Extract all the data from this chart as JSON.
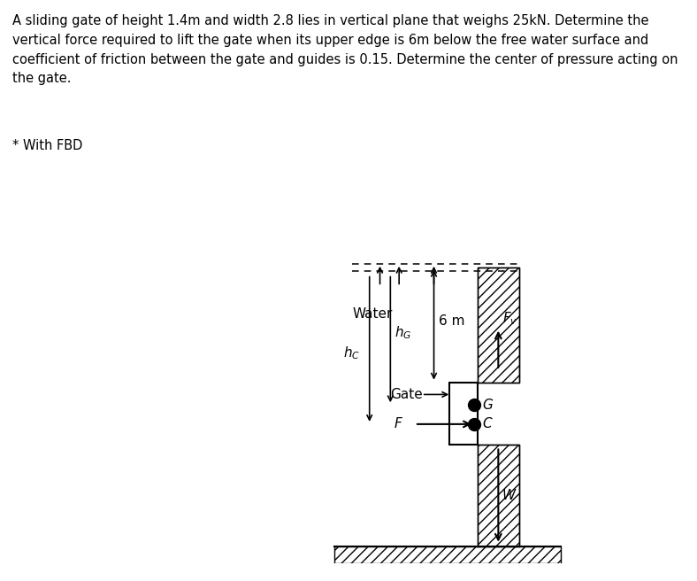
{
  "title_text": "A sliding gate of height 1.4m and width 2.8 lies in vertical plane that weighs 25kN. Determine the\nvertical force required to lift the gate when its upper edge is 6m below the free water surface and\ncoefficient of friction between the gate and guides is 0.15. Determine the center of pressure acting on\nthe gate.",
  "subtitle_text": "* With FBD",
  "bg_color": "#ffffff",
  "text_color": "#000000",
  "water_label": "Water",
  "six_m_label": "6 m",
  "gate_label": "Gate",
  "hG_label": "h_G",
  "hC_label": "h_C",
  "G_label": "G",
  "C_label": "C",
  "F_label": "F",
  "W_label": "W",
  "Fv_label": "F_v",
  "hatch_pattern": "///",
  "font_size_title": 10.5,
  "font_size_labels": 10
}
